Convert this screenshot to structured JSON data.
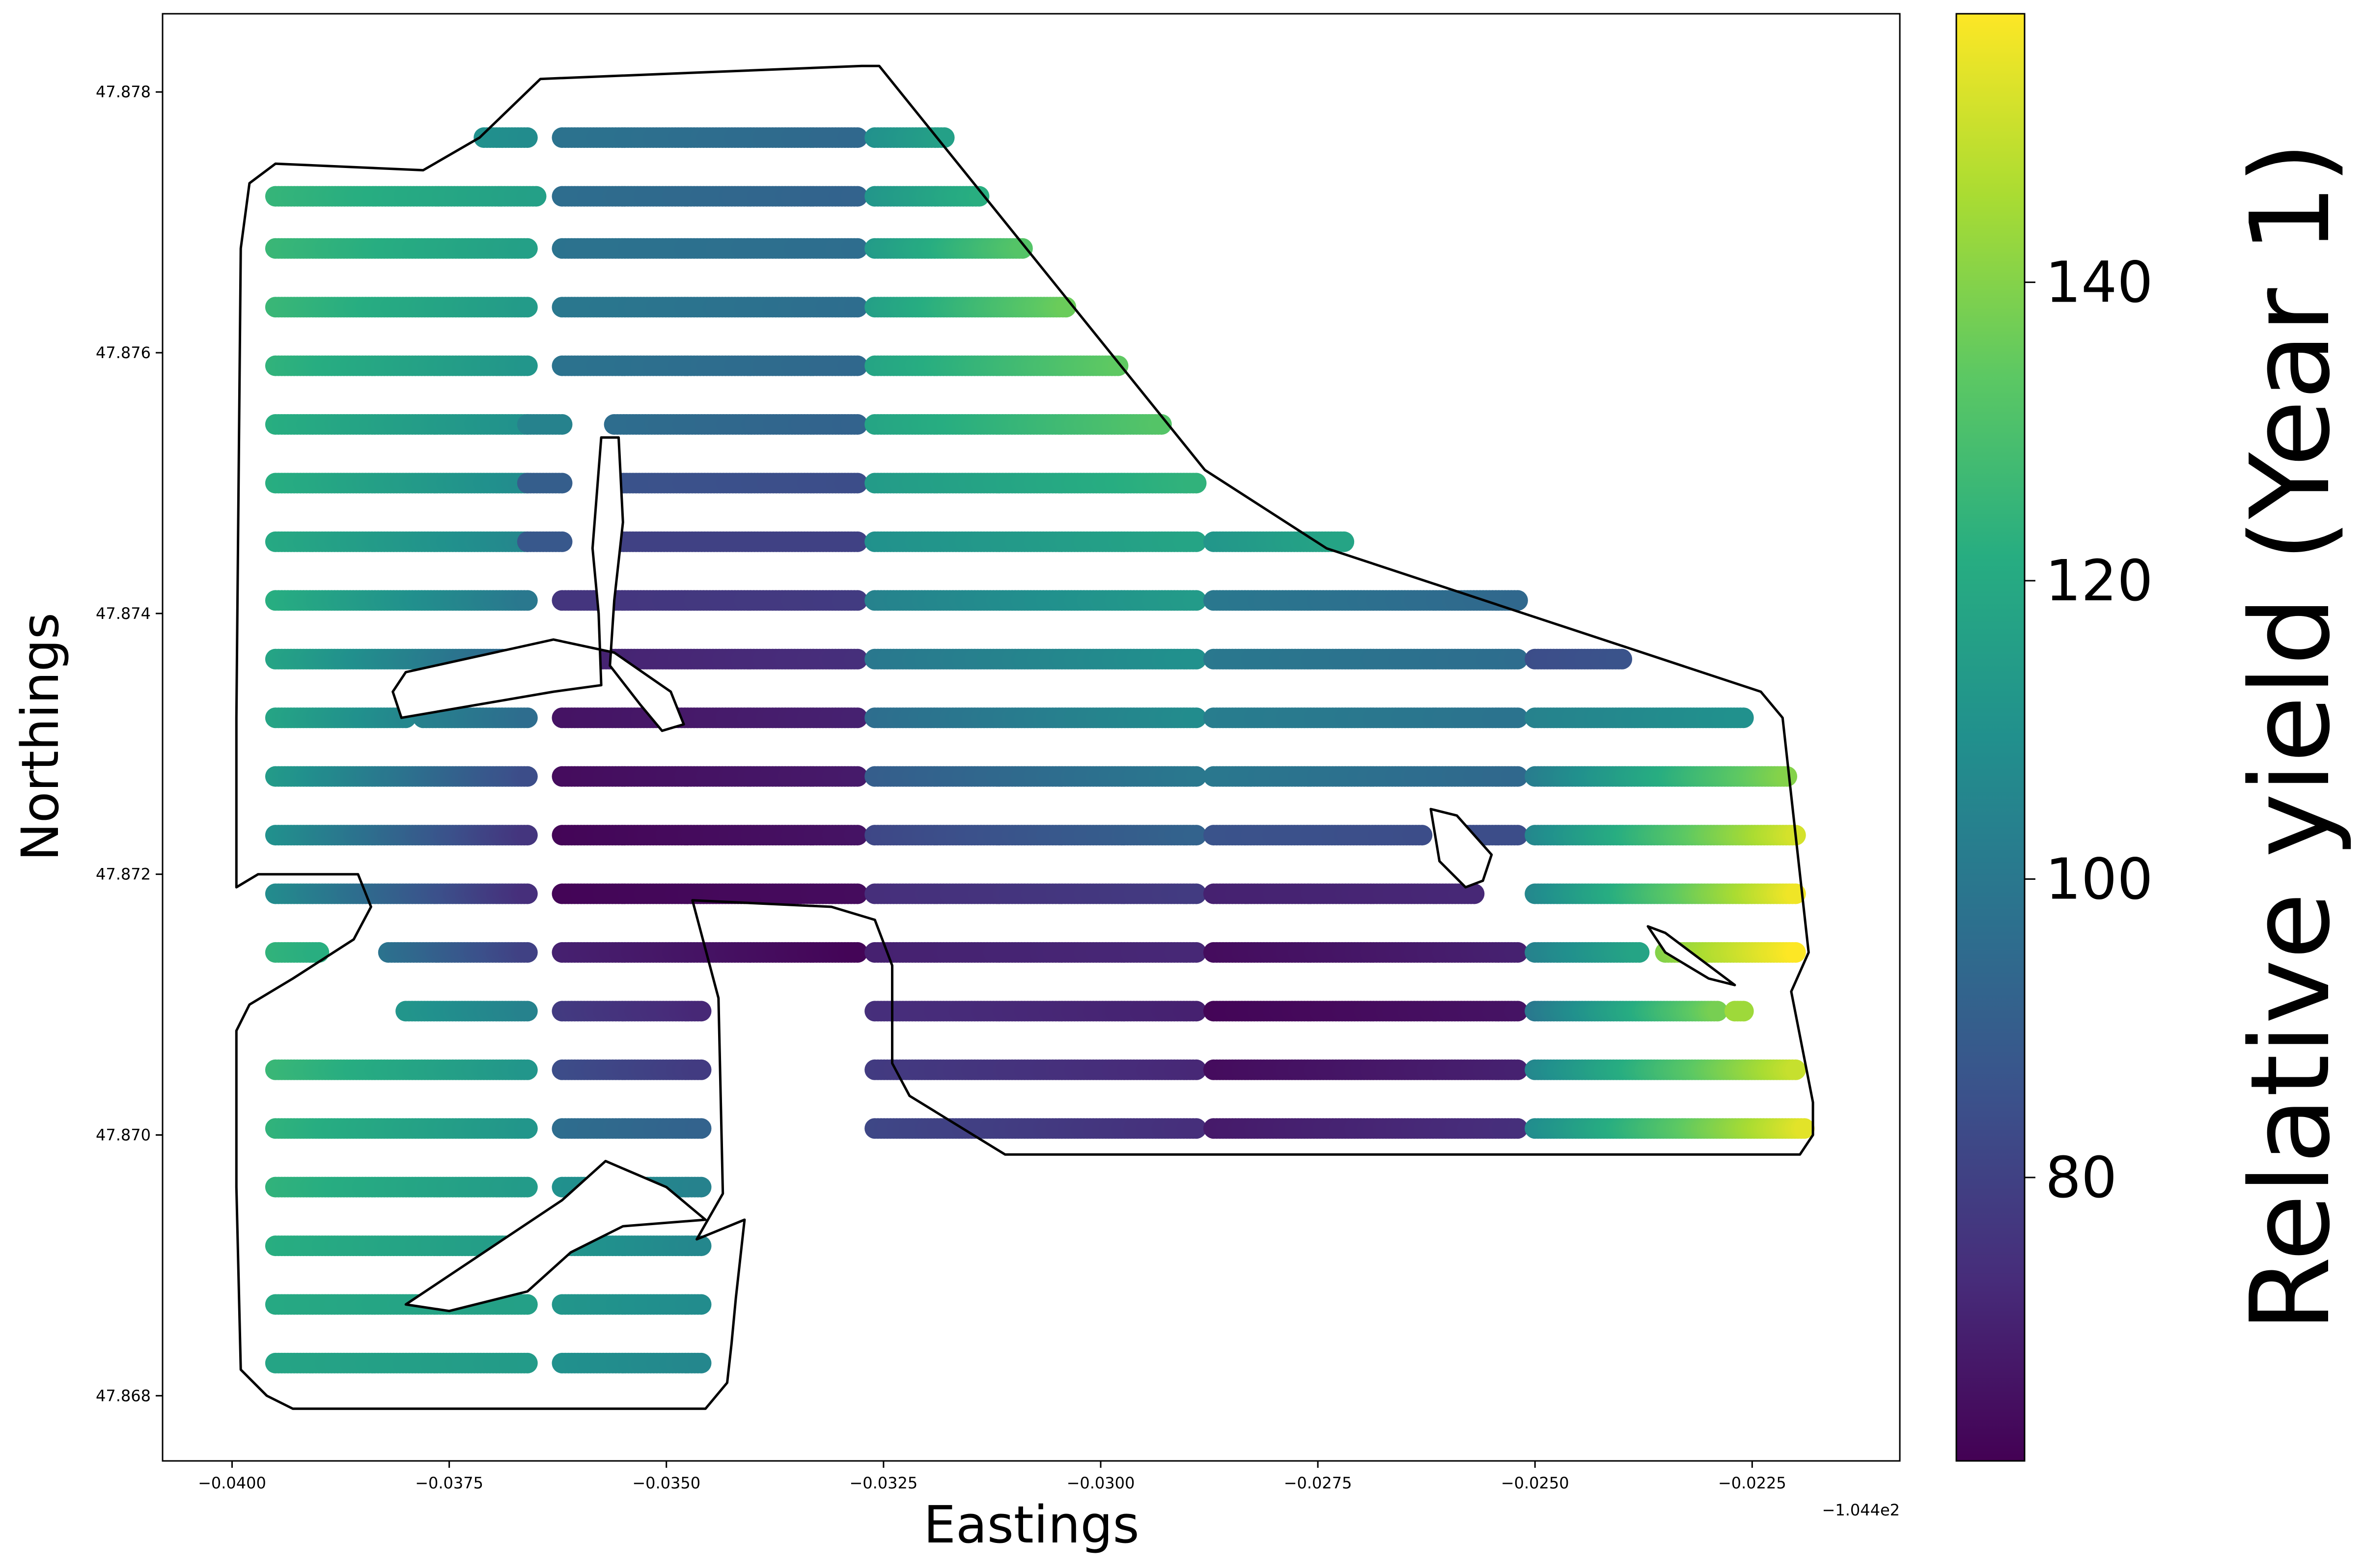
{
  "chart_data": {
    "type": "scatter",
    "title": "",
    "xlabel": "Eastings",
    "ylabel": "Northings",
    "x_offset_label": "−1.044e2",
    "xlim": [
      -0.0408,
      -0.0208
    ],
    "ylim": [
      47.8675,
      47.8786
    ],
    "x_ticks": [
      -0.04,
      -0.0375,
      -0.035,
      -0.0325,
      -0.03,
      -0.0275,
      -0.025,
      -0.0225
    ],
    "x_tick_labels": [
      "−0.0400",
      "−0.0375",
      "−0.0350",
      "−0.0325",
      "−0.0300",
      "−0.0275",
      "−0.0250",
      "−0.0225"
    ],
    "y_ticks": [
      47.868,
      47.87,
      47.872,
      47.874,
      47.876,
      47.878
    ],
    "y_tick_labels": [
      "47.868",
      "47.870",
      "47.872",
      "47.874",
      "47.876",
      "47.878"
    ],
    "grid": false,
    "legend": "none",
    "colorbar": {
      "label": "Relative yield (Year 1)",
      "colormap": "viridis",
      "range": [
        61,
        158
      ],
      "ticks": [
        80,
        100,
        120,
        140
      ],
      "tick_labels": [
        "80",
        "100",
        "120",
        "140"
      ]
    },
    "boundary": [
      [
        -0.0399,
        47.8768
      ],
      [
        -0.0398,
        47.8773
      ],
      [
        -0.0395,
        47.87745
      ],
      [
        -0.0378,
        47.8774
      ],
      [
        -0.03715,
        47.87765
      ],
      [
        -0.03645,
        47.8781
      ],
      [
        -0.03275,
        47.8782
      ],
      [
        -0.03255,
        47.8782
      ],
      [
        -0.0288,
        47.8751
      ],
      [
        -0.0274,
        47.8745
      ],
      [
        -0.0224,
        47.8734
      ],
      [
        -0.02215,
        47.8732
      ],
      [
        -0.02185,
        47.8714
      ],
      [
        -0.02205,
        47.8711
      ],
      [
        -0.0218,
        47.87025
      ],
      [
        -0.0218,
        47.87
      ],
      [
        -0.02195,
        47.86985
      ],
      [
        -0.0311,
        47.86985
      ],
      [
        -0.0322,
        47.8703
      ],
      [
        -0.0324,
        47.87055
      ],
      [
        -0.0324,
        47.8713
      ],
      [
        -0.0326,
        47.87165
      ],
      [
        -0.0331,
        47.87175
      ],
      [
        -0.0347,
        47.8718
      ],
      [
        -0.0344,
        47.87105
      ],
      [
        -0.03435,
        47.86955
      ],
      [
        -0.03465,
        47.8692
      ],
      [
        -0.0341,
        47.86935
      ],
      [
        -0.0342,
        47.86875
      ],
      [
        -0.03425,
        47.8684
      ],
      [
        -0.0343,
        47.8681
      ],
      [
        -0.03455,
        47.8679
      ],
      [
        -0.0359,
        47.8679
      ],
      [
        -0.0393,
        47.8679
      ],
      [
        -0.0396,
        47.868
      ],
      [
        -0.0399,
        47.8682
      ],
      [
        -0.03995,
        47.8696
      ],
      [
        -0.03995,
        47.8708
      ],
      [
        -0.0398,
        47.871
      ],
      [
        -0.0393,
        47.8712
      ],
      [
        -0.0386,
        47.8715
      ],
      [
        -0.0384,
        47.87175
      ],
      [
        -0.03855,
        47.872
      ],
      [
        -0.0397,
        47.872
      ],
      [
        -0.03995,
        47.8719
      ],
      [
        -0.03995,
        47.8732
      ],
      [
        -0.0399,
        47.8768
      ]
    ],
    "holes": [
      [
        [
          -0.03575,
          47.87535
        ],
        [
          -0.03555,
          47.87535
        ],
        [
          -0.0355,
          47.8747
        ],
        [
          -0.0356,
          47.8741
        ],
        [
          -0.03565,
          47.8736
        ],
        [
          -0.0353,
          47.8733
        ],
        [
          -0.03505,
          47.8731
        ],
        [
          -0.0348,
          47.87315
        ],
        [
          -0.03495,
          47.8734
        ],
        [
          -0.0356,
          47.8737
        ],
        [
          -0.0363,
          47.8738
        ],
        [
          -0.038,
          47.87355
        ],
        [
          -0.03815,
          47.8734
        ],
        [
          -0.03805,
          47.8732
        ],
        [
          -0.0363,
          47.8734
        ],
        [
          -0.03575,
          47.87345
        ],
        [
          -0.03578,
          47.874
        ],
        [
          -0.03585,
          47.8745
        ],
        [
          -0.03575,
          47.87535
        ]
      ],
      [
        [
          -0.0262,
          47.8725
        ],
        [
          -0.0259,
          47.87245
        ],
        [
          -0.0255,
          47.87215
        ],
        [
          -0.0256,
          47.87195
        ],
        [
          -0.0258,
          47.8719
        ],
        [
          -0.0261,
          47.8721
        ],
        [
          -0.0262,
          47.8725
        ]
      ],
      [
        [
          -0.0237,
          47.8716
        ],
        [
          -0.0235,
          47.87155
        ],
        [
          -0.0227,
          47.87115
        ],
        [
          -0.023,
          47.8712
        ],
        [
          -0.0235,
          47.8714
        ],
        [
          -0.0237,
          47.8716
        ]
      ],
      [
        [
          -0.038,
          47.8687
        ],
        [
          -0.0371,
          47.8691
        ],
        [
          -0.0362,
          47.8695
        ],
        [
          -0.0357,
          47.8698
        ],
        [
          -0.035,
          47.8696
        ],
        [
          -0.03455,
          47.86935
        ],
        [
          -0.0355,
          47.8693
        ],
        [
          -0.0361,
          47.8691
        ],
        [
          -0.0366,
          47.8688
        ],
        [
          -0.0375,
          47.86865
        ],
        [
          -0.038,
          47.8687
        ]
      ]
    ],
    "harvest_passes": [
      {
        "y": 47.87765,
        "segments": [
          {
            "x0": -0.0371,
            "x1": -0.0366,
            "v0": 110,
            "v1": 108
          },
          {
            "x0": -0.0362,
            "x1": -0.0328,
            "v0": 98,
            "v1": 94
          },
          {
            "x0": -0.0326,
            "x1": -0.0318,
            "v0": 110,
            "v1": 116
          }
        ]
      },
      {
        "y": 47.8772,
        "segments": [
          {
            "x0": -0.0395,
            "x1": -0.0365,
            "v0": 125,
            "v1": 116
          },
          {
            "x0": -0.0362,
            "x1": -0.0328,
            "v0": 96,
            "v1": 92
          },
          {
            "x0": -0.0326,
            "x1": -0.0314,
            "v0": 112,
            "v1": 122
          }
        ]
      },
      {
        "y": 47.8768,
        "segments": [
          {
            "x0": -0.0395,
            "x1": -0.0366,
            "v0": 126,
            "v1": 116
          },
          {
            "x0": -0.0362,
            "x1": -0.0328,
            "v0": 98,
            "v1": 96
          },
          {
            "x0": -0.0326,
            "x1": -0.0309,
            "v0": 114,
            "v1": 132
          }
        ]
      },
      {
        "y": 47.87635,
        "segments": [
          {
            "x0": -0.0395,
            "x1": -0.0366,
            "v0": 126,
            "v1": 114
          },
          {
            "x0": -0.0362,
            "x1": -0.0328,
            "v0": 100,
            "v1": 96
          },
          {
            "x0": -0.0326,
            "x1": -0.0304,
            "v0": 116,
            "v1": 136
          }
        ]
      },
      {
        "y": 47.8759,
        "segments": [
          {
            "x0": -0.0395,
            "x1": -0.0366,
            "v0": 124,
            "v1": 112
          },
          {
            "x0": -0.0362,
            "x1": -0.0328,
            "v0": 98,
            "v1": 94
          },
          {
            "x0": -0.0326,
            "x1": -0.0298,
            "v0": 118,
            "v1": 134
          }
        ]
      },
      {
        "y": 47.87545,
        "segments": [
          {
            "x0": -0.0395,
            "x1": -0.0366,
            "v0": 122,
            "v1": 110
          },
          {
            "x0": -0.0366,
            "x1": -0.0362,
            "v0": 104,
            "v1": 104
          },
          {
            "x0": -0.0356,
            "x1": -0.0328,
            "v0": 96,
            "v1": 92
          },
          {
            "x0": -0.0326,
            "x1": -0.0293,
            "v0": 118,
            "v1": 132
          }
        ]
      },
      {
        "y": 47.875,
        "segments": [
          {
            "x0": -0.0395,
            "x1": -0.0366,
            "v0": 122,
            "v1": 108
          },
          {
            "x0": -0.0366,
            "x1": -0.0362,
            "v0": 90,
            "v1": 90
          },
          {
            "x0": -0.0356,
            "x1": -0.0328,
            "v0": 86,
            "v1": 84
          },
          {
            "x0": -0.0326,
            "x1": -0.0289,
            "v0": 114,
            "v1": 124
          }
        ]
      },
      {
        "y": 47.87455,
        "segments": [
          {
            "x0": -0.0395,
            "x1": -0.0366,
            "v0": 120,
            "v1": 106
          },
          {
            "x0": -0.0366,
            "x1": -0.0362,
            "v0": 88,
            "v1": 88
          },
          {
            "x0": -0.0356,
            "x1": -0.0328,
            "v0": 80,
            "v1": 80
          },
          {
            "x0": -0.0326,
            "x1": -0.0289,
            "v0": 110,
            "v1": 118
          },
          {
            "x0": -0.0287,
            "x1": -0.0272,
            "v0": 112,
            "v1": 118
          }
        ]
      },
      {
        "y": 47.8741,
        "segments": [
          {
            "x0": -0.0395,
            "x1": -0.0366,
            "v0": 122,
            "v1": 100
          },
          {
            "x0": -0.0362,
            "x1": -0.0328,
            "v0": 76,
            "v1": 78
          },
          {
            "x0": -0.0326,
            "x1": -0.0289,
            "v0": 104,
            "v1": 114
          },
          {
            "x0": -0.0287,
            "x1": -0.0252,
            "v0": 100,
            "v1": 94
          }
        ]
      },
      {
        "y": 47.87365,
        "segments": [
          {
            "x0": -0.0395,
            "x1": -0.0366,
            "v0": 118,
            "v1": 92
          },
          {
            "x0": -0.0362,
            "x1": -0.0328,
            "v0": 70,
            "v1": 74
          },
          {
            "x0": -0.0326,
            "x1": -0.0289,
            "v0": 100,
            "v1": 110
          },
          {
            "x0": -0.0287,
            "x1": -0.0252,
            "v0": 100,
            "v1": 96
          },
          {
            "x0": -0.025,
            "x1": -0.024,
            "v0": 84,
            "v1": 86
          }
        ]
      },
      {
        "y": 47.8732,
        "segments": [
          {
            "x0": -0.0395,
            "x1": -0.038,
            "v0": 118,
            "v1": 106
          },
          {
            "x0": -0.0378,
            "x1": -0.0366,
            "v0": 104,
            "v1": 96
          },
          {
            "x0": -0.0362,
            "x1": -0.0328,
            "v0": 66,
            "v1": 70
          },
          {
            "x0": -0.0326,
            "x1": -0.0289,
            "v0": 96,
            "v1": 108
          },
          {
            "x0": -0.0287,
            "x1": -0.0252,
            "v0": 102,
            "v1": 98
          },
          {
            "x0": -0.025,
            "x1": -0.0226,
            "v0": 104,
            "v1": 110
          }
        ]
      },
      {
        "y": 47.87275,
        "segments": [
          {
            "x0": -0.0395,
            "x1": -0.0366,
            "v0": 114,
            "v1": 84
          },
          {
            "x0": -0.0362,
            "x1": -0.0328,
            "v0": 64,
            "v1": 68
          },
          {
            "x0": -0.0326,
            "x1": -0.0289,
            "v0": 90,
            "v1": 100
          },
          {
            "x0": -0.0287,
            "x1": -0.0252,
            "v0": 100,
            "v1": 94
          },
          {
            "x0": -0.025,
            "x1": -0.0221,
            "v0": 102,
            "v1": 140
          }
        ]
      },
      {
        "y": 47.8723,
        "segments": [
          {
            "x0": -0.0395,
            "x1": -0.0366,
            "v0": 110,
            "v1": 76
          },
          {
            "x0": -0.0362,
            "x1": -0.0328,
            "v0": 62,
            "v1": 66
          },
          {
            "x0": -0.0326,
            "x1": -0.0289,
            "v0": 82,
            "v1": 92
          },
          {
            "x0": -0.0287,
            "x1": -0.0263,
            "v0": 86,
            "v1": 84
          },
          {
            "x0": -0.026,
            "x1": -0.0252,
            "v0": 84,
            "v1": 84
          },
          {
            "x0": -0.025,
            "x1": -0.022,
            "v0": 106,
            "v1": 152
          }
        ]
      },
      {
        "y": 47.87185,
        "segments": [
          {
            "x0": -0.0395,
            "x1": -0.0366,
            "v0": 108,
            "v1": 74
          },
          {
            "x0": -0.0362,
            "x1": -0.0328,
            "v0": 62,
            "v1": 64
          },
          {
            "x0": -0.0326,
            "x1": -0.0289,
            "v0": 74,
            "v1": 78
          },
          {
            "x0": -0.0287,
            "x1": -0.0257,
            "v0": 70,
            "v1": 72
          },
          {
            "x0": -0.025,
            "x1": -0.022,
            "v0": 106,
            "v1": 156
          }
        ]
      },
      {
        "y": 47.8714,
        "segments": [
          {
            "x0": -0.0395,
            "x1": -0.039,
            "v0": 124,
            "v1": 122
          },
          {
            "x0": -0.0382,
            "x1": -0.0366,
            "v0": 98,
            "v1": 80
          },
          {
            "x0": -0.0362,
            "x1": -0.0328,
            "v0": 70,
            "v1": 62
          },
          {
            "x0": -0.0326,
            "x1": -0.0289,
            "v0": 70,
            "v1": 72
          },
          {
            "x0": -0.0287,
            "x1": -0.0252,
            "v0": 64,
            "v1": 70
          },
          {
            "x0": -0.025,
            "x1": -0.0238,
            "v0": 104,
            "v1": 118
          },
          {
            "x0": -0.0235,
            "x1": -0.022,
            "v0": 140,
            "v1": 158
          }
        ]
      },
      {
        "y": 47.87095,
        "segments": [
          {
            "x0": -0.038,
            "x1": -0.0366,
            "v0": 112,
            "v1": 104
          },
          {
            "x0": -0.0362,
            "x1": -0.0346,
            "v0": 78,
            "v1": 72
          },
          {
            "x0": -0.0326,
            "x1": -0.0289,
            "v0": 74,
            "v1": 70
          },
          {
            "x0": -0.0287,
            "x1": -0.0252,
            "v0": 62,
            "v1": 66
          },
          {
            "x0": -0.025,
            "x1": -0.0229,
            "v0": 100,
            "v1": 138
          },
          {
            "x0": -0.0227,
            "x1": -0.0226,
            "v0": 144,
            "v1": 144
          }
        ]
      },
      {
        "y": 47.8705,
        "segments": [
          {
            "x0": -0.0395,
            "x1": -0.0366,
            "v0": 126,
            "v1": 112
          },
          {
            "x0": -0.0362,
            "x1": -0.0346,
            "v0": 84,
            "v1": 78
          },
          {
            "x0": -0.0326,
            "x1": -0.0289,
            "v0": 78,
            "v1": 72
          },
          {
            "x0": -0.0287,
            "x1": -0.0252,
            "v0": 64,
            "v1": 70
          },
          {
            "x0": -0.025,
            "x1": -0.022,
            "v0": 106,
            "v1": 150
          }
        ]
      },
      {
        "y": 47.87005,
        "segments": [
          {
            "x0": -0.0395,
            "x1": -0.0366,
            "v0": 124,
            "v1": 112
          },
          {
            "x0": -0.0362,
            "x1": -0.0346,
            "v0": 96,
            "v1": 92
          },
          {
            "x0": -0.0326,
            "x1": -0.0289,
            "v0": 82,
            "v1": 74
          },
          {
            "x0": -0.0287,
            "x1": -0.0252,
            "v0": 68,
            "v1": 74
          },
          {
            "x0": -0.025,
            "x1": -0.0219,
            "v0": 108,
            "v1": 154
          }
        ]
      },
      {
        "y": 47.8696,
        "segments": [
          {
            "x0": -0.0395,
            "x1": -0.0366,
            "v0": 124,
            "v1": 114
          },
          {
            "x0": -0.0362,
            "x1": -0.0346,
            "v0": 110,
            "v1": 104
          }
        ]
      },
      {
        "y": 47.86915,
        "segments": [
          {
            "x0": -0.0395,
            "x1": -0.0366,
            "v0": 122,
            "v1": 114
          },
          {
            "x0": -0.0362,
            "x1": -0.0346,
            "v0": 112,
            "v1": 106
          }
        ]
      },
      {
        "y": 47.8687,
        "segments": [
          {
            "x0": -0.0395,
            "x1": -0.0366,
            "v0": 120,
            "v1": 116
          },
          {
            "x0": -0.0362,
            "x1": -0.0346,
            "v0": 112,
            "v1": 108
          }
        ]
      },
      {
        "y": 47.86825,
        "segments": [
          {
            "x0": -0.0395,
            "x1": -0.0366,
            "v0": 118,
            "v1": 114
          },
          {
            "x0": -0.0362,
            "x1": -0.0346,
            "v0": 110,
            "v1": 106
          }
        ]
      }
    ]
  }
}
